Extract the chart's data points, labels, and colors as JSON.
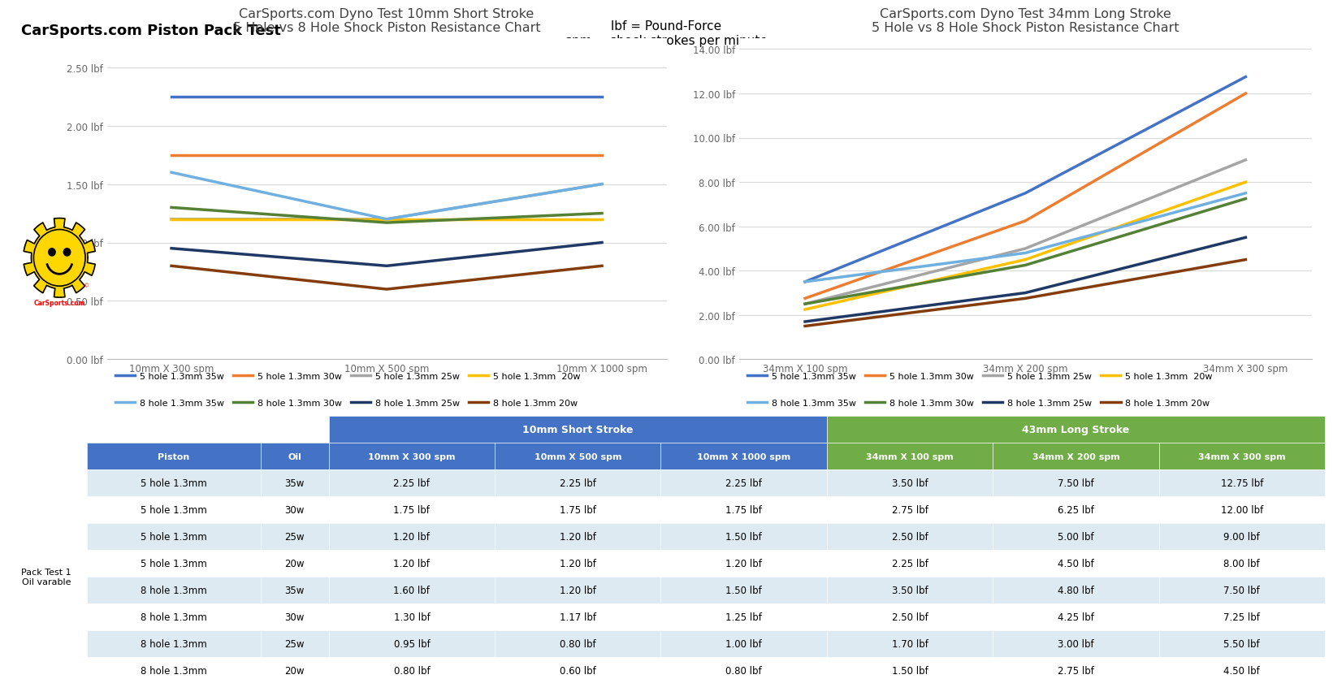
{
  "title_main": "CarSports.com Piston Pack Test",
  "title_note1": "lbf = Pound-Force",
  "title_note2": "spm = shock strokes per minute",
  "chart1_title": "CarSports.com Dyno Test 10mm Short Stroke\n5 Hole vs 8 Hole Shock Piston Resistance Chart",
  "chart1_xticks": [
    "10mm X 300 spm",
    "10mm X 500 spm",
    "10mm X 1000 spm"
  ],
  "chart1_ylim": [
    0,
    2.75
  ],
  "chart1_yticks": [
    0.0,
    0.5,
    1.0,
    1.5,
    2.0,
    2.5
  ],
  "chart1_ytick_labels": [
    "0.00 lbf",
    "0.50 lbf",
    "1.00 lbf",
    "1.50 lbf",
    "2.00 lbf",
    "2.50 lbf"
  ],
  "chart2_title": "CarSports.com Dyno Test 34mm Long Stroke\n5 Hole vs 8 Hole Shock Piston Resistance Chart",
  "chart2_xticks": [
    "34mm X 100 spm",
    "34mm X 200 spm",
    "34mm X 300 spm"
  ],
  "chart2_ylim": [
    0,
    14.5
  ],
  "chart2_yticks": [
    0.0,
    2.0,
    4.0,
    6.0,
    8.0,
    10.0,
    12.0,
    14.0
  ],
  "chart2_ytick_labels": [
    "0.00 lbf",
    "2.00 lbf",
    "4.00 lbf",
    "6.00 lbf",
    "8.00 lbf",
    "10.00 lbf",
    "12.00 lbf",
    "14.00 lbf"
  ],
  "series": [
    {
      "label": "5 hole 1.3mm 35w",
      "color": "#4472C4"
    },
    {
      "label": "5 hole 1.3mm 30w",
      "color": "#ED7D31"
    },
    {
      "label": "5 hole 1.3mm 25w",
      "color": "#A5A5A5"
    },
    {
      "label": "5 hole 1.3mm  20w",
      "color": "#FFC000"
    },
    {
      "label": "8 hole 1.3mm 35w",
      "color": "#70B0E0"
    },
    {
      "label": "8 hole 1.3mm 30w",
      "color": "#548135"
    },
    {
      "label": "8 hole 1.3mm 25w",
      "color": "#1F3864"
    },
    {
      "label": "8 hole 1.3mm 20w",
      "color": "#843C0C"
    }
  ],
  "chart1_data": {
    "5h_35w": [
      2.25,
      2.25,
      2.25
    ],
    "5h_30w": [
      1.75,
      1.75,
      1.75
    ],
    "5h_25w": [
      1.2,
      1.2,
      1.5
    ],
    "5h_20w": [
      1.2,
      1.2,
      1.2
    ],
    "8h_35w": [
      1.6,
      1.2,
      1.5
    ],
    "8h_30w": [
      1.3,
      1.17,
      1.25
    ],
    "8h_25w": [
      0.95,
      0.8,
      1.0
    ],
    "8h_20w": [
      0.8,
      0.6,
      0.8
    ]
  },
  "chart2_data": {
    "5h_35w": [
      3.5,
      7.5,
      12.75
    ],
    "5h_30w": [
      2.75,
      6.25,
      12.0
    ],
    "5h_25w": [
      2.5,
      5.0,
      9.0
    ],
    "5h_20w": [
      2.25,
      4.5,
      8.0
    ],
    "8h_35w": [
      3.5,
      4.8,
      7.5
    ],
    "8h_30w": [
      2.5,
      4.25,
      7.25
    ],
    "8h_25w": [
      1.7,
      3.0,
      5.5
    ],
    "8h_20w": [
      1.5,
      2.75,
      4.5
    ]
  },
  "table_header_bg": "#4472C4",
  "table_header_fg": "#FFFFFF",
  "table_green_bg": "#70AD47",
  "table_row_alt": "#DEEAF1",
  "table_row_norm": "#FFFFFF",
  "table_cols": [
    "Piston",
    "Oil",
    "10mm X 300 spm",
    "10mm X 500 spm",
    "10mm X 1000 spm",
    "34mm X 100 spm",
    "34mm X 200 spm",
    "34mm X 300 spm"
  ],
  "table_rows": [
    [
      "5 hole 1.3mm",
      "35w",
      "2.25 lbf",
      "2.25 lbf",
      "2.25 lbf",
      "3.50 lbf",
      "7.50 lbf",
      "12.75 lbf"
    ],
    [
      "5 hole 1.3mm",
      "30w",
      "1.75 lbf",
      "1.75 lbf",
      "1.75 lbf",
      "2.75 lbf",
      "6.25 lbf",
      "12.00 lbf"
    ],
    [
      "5 hole 1.3mm",
      "25w",
      "1.20 lbf",
      "1.20 lbf",
      "1.50 lbf",
      "2.50 lbf",
      "5.00 lbf",
      "9.00 lbf"
    ],
    [
      "5 hole 1.3mm",
      "20w",
      "1.20 lbf",
      "1.20 lbf",
      "1.20 lbf",
      "2.25 lbf",
      "4.50 lbf",
      "8.00 lbf"
    ],
    [
      "8 hole 1.3mm",
      "35w",
      "1.60 lbf",
      "1.20 lbf",
      "1.50 lbf",
      "3.50 lbf",
      "4.80 lbf",
      "7.50 lbf"
    ],
    [
      "8 hole 1.3mm",
      "30w",
      "1.30 lbf",
      "1.17 lbf",
      "1.25 lbf",
      "2.50 lbf",
      "4.25 lbf",
      "7.25 lbf"
    ],
    [
      "8 hole 1.3mm",
      "25w",
      "0.95 lbf",
      "0.80 lbf",
      "1.00 lbf",
      "1.70 lbf",
      "3.00 lbf",
      "5.50 lbf"
    ],
    [
      "8 hole 1.3mm",
      "20w",
      "0.80 lbf",
      "0.60 lbf",
      "0.80 lbf",
      "1.50 lbf",
      "2.75 lbf",
      "4.50 lbf"
    ]
  ],
  "bg_color": "#FFFFFF",
  "grid_color": "#D9D9D9"
}
